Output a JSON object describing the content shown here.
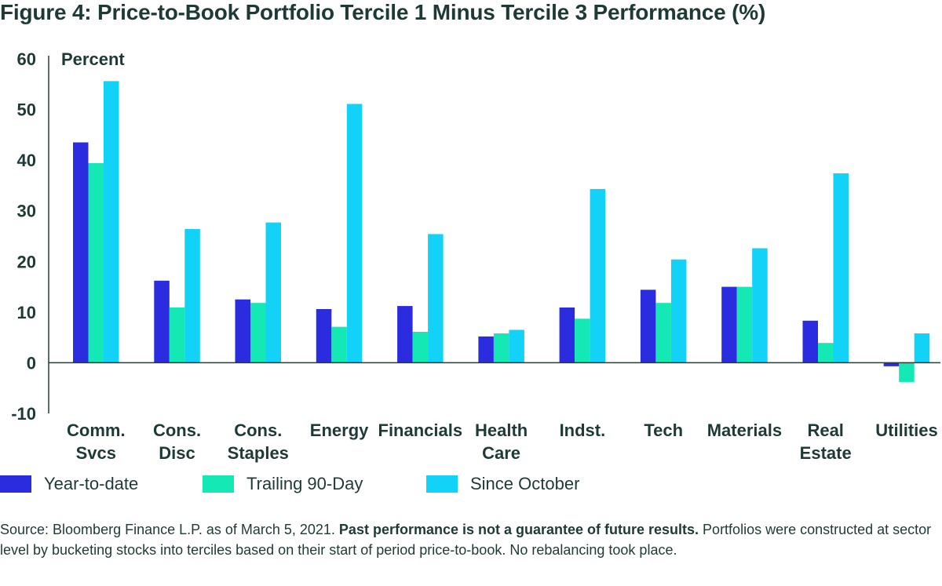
{
  "title": "Figure 4: Price-to-Book Portfolio Tercile 1 Minus Tercile 3 Performance (%)",
  "source": {
    "prefix": "Source: Bloomberg Finance L.P. as of March 5, 2021. ",
    "bold": "Past performance is not a guarantee of future results.",
    "suffix": " Portfolios were constructed at sector level by bucketing stocks into terciles based on their start of period price-to-book.  No rebalancing took place."
  },
  "colors": {
    "ytd": "#2b2be0",
    "trailing": "#14e8b4",
    "since_october": "#12d2f7",
    "axis": "#2b3b38",
    "text": "#1f3a36"
  },
  "chart_data": {
    "type": "bar",
    "title": "Figure 4: Price-to-Book Portfolio Tercile 1 Minus Tercile 3 Performance (%)",
    "ylabel": "Percent",
    "xlabel": "",
    "ylim": [
      -10,
      60
    ],
    "yticks": [
      60,
      50,
      40,
      30,
      20,
      10,
      0,
      -10
    ],
    "grid": false,
    "legend_position": "bottom",
    "categories": [
      [
        "Comm.",
        "Svcs"
      ],
      [
        "Cons.",
        "Disc"
      ],
      [
        "Cons.",
        "Staples"
      ],
      [
        "Energy"
      ],
      [
        "Financials"
      ],
      [
        "Health",
        "Care"
      ],
      [
        "Indst."
      ],
      [
        "Tech"
      ],
      [
        "Materials"
      ],
      [
        "Real",
        "Estate"
      ],
      [
        "Utilities"
      ]
    ],
    "series": [
      {
        "name": "Year-to-date",
        "color_key": "ytd",
        "values": [
          43.5,
          16.2,
          12.5,
          10.6,
          11.2,
          5.2,
          10.9,
          14.4,
          15.0,
          8.3,
          -0.7
        ]
      },
      {
        "name": "Trailing 90-Day",
        "color_key": "trailing",
        "values": [
          39.4,
          10.9,
          11.8,
          7.1,
          6.1,
          5.8,
          8.7,
          11.8,
          15.0,
          3.9,
          -3.8
        ]
      },
      {
        "name": "Since October",
        "color_key": "since_october",
        "values": [
          55.6,
          26.4,
          27.7,
          51.1,
          25.4,
          6.5,
          34.3,
          20.4,
          22.6,
          37.4,
          5.8
        ]
      }
    ]
  }
}
